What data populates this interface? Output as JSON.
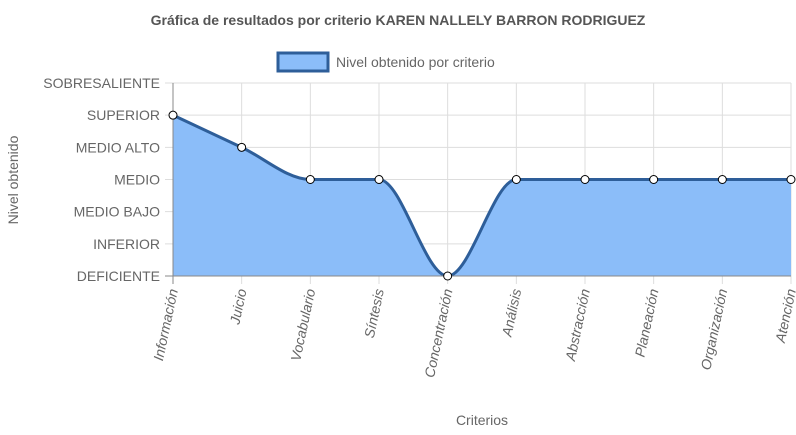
{
  "chart_data": {
    "type": "area",
    "title": "Gráfica de resultados por criterio KAREN NALLELY BARRON RODRIGUEZ",
    "xlabel": "Criterios",
    "ylabel": "Nivel obtenido",
    "levels": [
      "DEFICIENTE",
      "INFERIOR",
      "MEDIO BAJO",
      "MEDIO",
      "MEDIO ALTO",
      "SUPERIOR",
      "SOBRESALIENTE"
    ],
    "categories": [
      "Información",
      "Juicio",
      "Vocabulario",
      "Síntesis",
      "Concentración",
      "Análisis",
      "Abstracción",
      "Planeación",
      "Organización",
      "Atención"
    ],
    "series": [
      {
        "name": "Nivel obtenido por criterio",
        "values": [
          5,
          4,
          3,
          3,
          0,
          3,
          3,
          3,
          3,
          3
        ]
      }
    ],
    "ylim": [
      0,
      6
    ],
    "grid": true,
    "legend_position": "top",
    "colors": {
      "fill": "#8BBDF9",
      "line": "#2E5E99",
      "point_fill": "#ffffff",
      "point_stroke": "#000000",
      "grid": "#dddddd",
      "axis": "#888888"
    }
  }
}
